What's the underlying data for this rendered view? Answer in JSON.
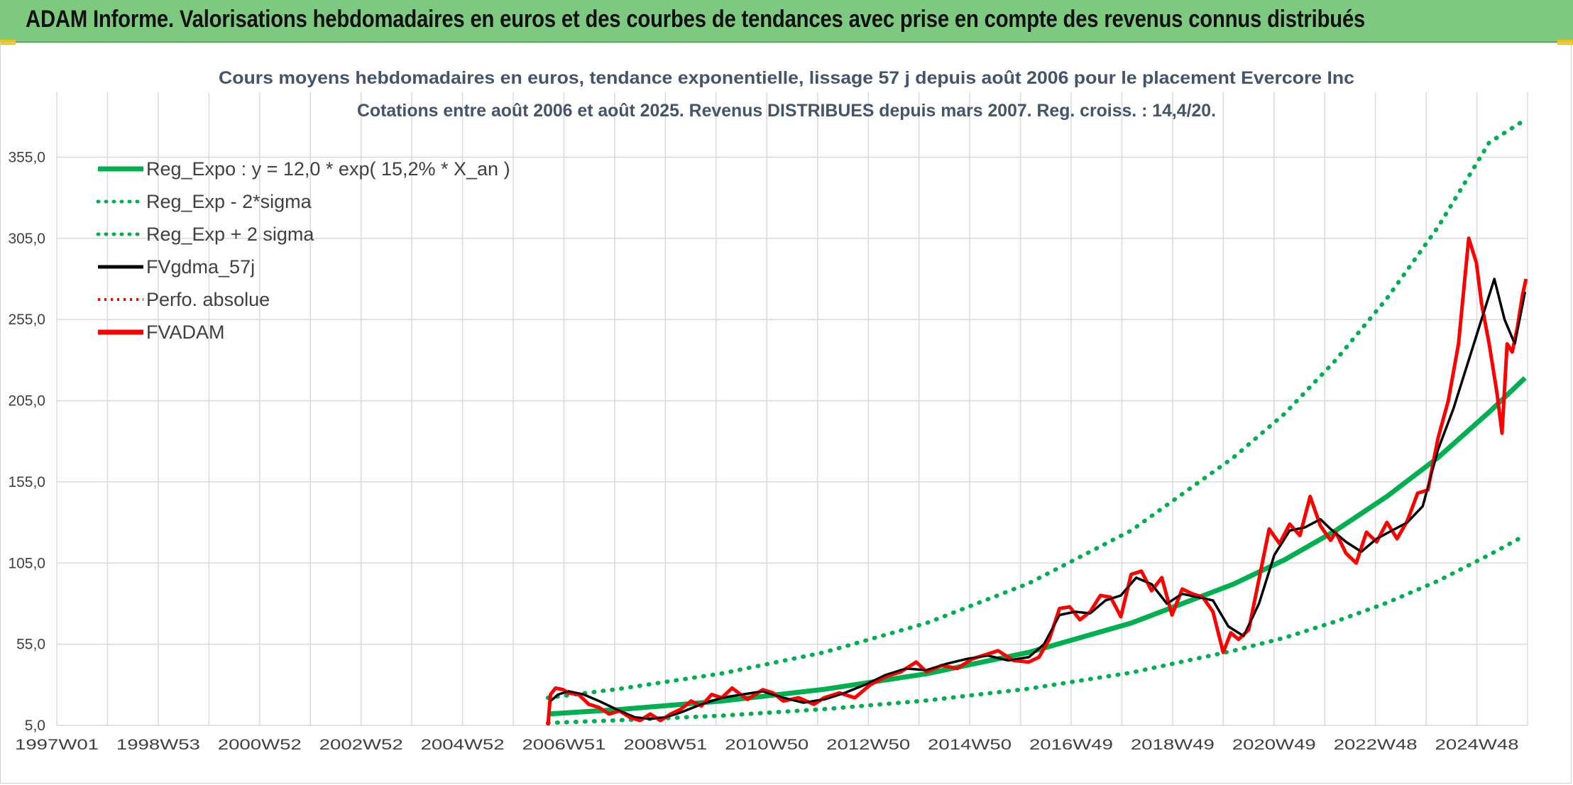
{
  "header": {
    "title": "ADAM Informe. Valorisations hebdomadaires en euros et des courbes de tendances avec prise en compte des revenus connus distribués"
  },
  "colors": {
    "banner": "#7dc97f",
    "regression": "#00b050",
    "smoothed": "#000000",
    "valuation": "#ff0000",
    "grid": "#d9d9d9"
  },
  "chart_data": {
    "type": "line",
    "title": "Cours moyens hebdomadaires en euros, tendance exponentielle, lissage 57 j depuis août 2006 pour le placement Evercore Inc",
    "subtitle": "Cotations entre août 2006 et août 2025. Revenus DISTRIBUES depuis mars 2007. Reg. croiss. : 14,4/20.",
    "xlabel": "",
    "ylabel": "",
    "x_tick_labels": [
      "1997W01",
      "1998W53",
      "2000W52",
      "2002W52",
      "2004W52",
      "2006W51",
      "2008W51",
      "2010W50",
      "2012W50",
      "2014W50",
      "2016W49",
      "2018W49",
      "2020W49",
      "2022W48",
      "2024W48"
    ],
    "y_tick_labels": [
      "5,0",
      "55,0",
      "105,0",
      "155,0",
      "205,0",
      "255,0",
      "305,0",
      "355,0"
    ],
    "ylim": [
      5,
      395
    ],
    "xlim": [
      1997.0,
      2025.75
    ],
    "grid": true,
    "legend_position": "top-left",
    "legend": [
      {
        "label": "Reg_Expo : y = 12,0 * exp( 15,2% *  X_an )",
        "color": "#00b050",
        "style": "solid"
      },
      {
        "label": "Reg_Exp - 2*sigma",
        "color": "#00b050",
        "style": "dotted"
      },
      {
        "label": "Reg_Exp + 2 sigma",
        "color": "#00b050",
        "style": "dotted"
      },
      {
        "label": "FVgdma_57j",
        "color": "#000000",
        "style": "solid"
      },
      {
        "label": "Perfo. absolue",
        "color": "#ff0000",
        "style": "dotted"
      },
      {
        "label": "FVADAM",
        "color": "#ff0000",
        "style": "solid"
      }
    ],
    "series": [
      {
        "name": "Reg_Expo : y = 12,0 * exp( 15,2% *  X_an )",
        "x": [
          2006.6,
          2008.0,
          2010.0,
          2012.0,
          2014.0,
          2016.0,
          2018.0,
          2020.0,
          2021.0,
          2022.0,
          2023.0,
          2024.0,
          2025.0,
          2025.7
        ],
        "values": [
          12.0,
          14.8,
          20.0,
          27.2,
          36.8,
          50.0,
          68.0,
          92.0,
          107.0,
          125.0,
          146.0,
          170.0,
          198.0,
          219.0
        ]
      },
      {
        "name": "Reg_Exp - 2*sigma",
        "x": [
          2006.6,
          2008.0,
          2010.0,
          2012.0,
          2014.0,
          2016.0,
          2018.0,
          2020.0,
          2021.0,
          2022.0,
          2023.0,
          2024.0,
          2025.0,
          2025.7
        ],
        "values": [
          6.5,
          8.2,
          11.0,
          15.0,
          20.3,
          27.6,
          37.5,
          51.0,
          59.0,
          69.0,
          80.5,
          94.0,
          110.0,
          122.0
        ]
      },
      {
        "name": "Reg_Exp + 2 sigma",
        "x": [
          2006.6,
          2008.0,
          2010.0,
          2012.0,
          2014.0,
          2016.0,
          2018.0,
          2020.0,
          2021.0,
          2022.0,
          2023.0,
          2024.0,
          2025.0,
          2025.7
        ],
        "values": [
          22.0,
          27.5,
          37.0,
          50.0,
          68.0,
          92.5,
          125.0,
          170.0,
          197.0,
          230.0,
          268.0,
          312.0,
          364.0,
          378.0
        ]
      },
      {
        "name": "FVgdma_57j",
        "x": [
          2006.65,
          2006.8,
          2007.0,
          2007.3,
          2007.6,
          2008.0,
          2008.3,
          2008.6,
          2008.9,
          2009.2,
          2009.6,
          2010.0,
          2010.4,
          2010.8,
          2011.2,
          2011.6,
          2012.0,
          2012.4,
          2012.8,
          2013.2,
          2013.6,
          2014.0,
          2014.4,
          2014.8,
          2015.2,
          2015.6,
          2016.0,
          2016.3,
          2016.6,
          2016.9,
          2017.2,
          2017.5,
          2017.8,
          2018.1,
          2018.4,
          2018.7,
          2019.0,
          2019.3,
          2019.6,
          2019.9,
          2020.2,
          2020.5,
          2020.8,
          2021.1,
          2021.4,
          2021.7,
          2021.9,
          2022.2,
          2022.5,
          2022.8,
          2023.1,
          2023.4,
          2023.7,
          2024.0,
          2024.3,
          2024.6,
          2024.9,
          2025.1,
          2025.3,
          2025.5,
          2025.7
        ],
        "values": [
          20.0,
          24.0,
          26.0,
          24.0,
          20.0,
          14.0,
          10.0,
          9.0,
          10.0,
          13.0,
          18.0,
          22.0,
          24.0,
          26.0,
          22.0,
          19.0,
          21.0,
          25.0,
          30.0,
          36.0,
          40.0,
          39.0,
          43.0,
          46.0,
          48.0,
          45.0,
          47.0,
          55.0,
          73.0,
          75.0,
          74.0,
          82.0,
          85.0,
          96.0,
          92.0,
          80.0,
          86.0,
          84.0,
          82.0,
          66.0,
          60.0,
          80.0,
          110.0,
          125.0,
          127.0,
          132.0,
          126.0,
          118.0,
          112.0,
          120.0,
          125.0,
          130.0,
          140.0,
          175.0,
          200.0,
          230.0,
          260.0,
          280.0,
          255.0,
          240.0,
          272.0
        ]
      },
      {
        "name": "FVADAM",
        "x": [
          2006.6,
          2006.65,
          2006.75,
          2006.9,
          2007.0,
          2007.2,
          2007.4,
          2007.6,
          2007.8,
          2008.0,
          2008.2,
          2008.4,
          2008.6,
          2008.8,
          2009.0,
          2009.2,
          2009.4,
          2009.6,
          2009.8,
          2010.0,
          2010.2,
          2010.5,
          2010.8,
          2011.0,
          2011.2,
          2011.5,
          2011.8,
          2012.0,
          2012.3,
          2012.6,
          2012.9,
          2013.2,
          2013.5,
          2013.8,
          2014.0,
          2014.3,
          2014.6,
          2014.9,
          2015.1,
          2015.4,
          2015.7,
          2016.0,
          2016.2,
          2016.4,
          2016.6,
          2016.8,
          2017.0,
          2017.2,
          2017.4,
          2017.6,
          2017.8,
          2018.0,
          2018.2,
          2018.4,
          2018.6,
          2018.8,
          2019.0,
          2019.2,
          2019.4,
          2019.6,
          2019.8,
          2019.95,
          2020.1,
          2020.3,
          2020.5,
          2020.7,
          2020.9,
          2021.1,
          2021.3,
          2021.5,
          2021.7,
          2021.9,
          2022.0,
          2022.2,
          2022.4,
          2022.6,
          2022.8,
          2023.0,
          2023.2,
          2023.4,
          2023.6,
          2023.8,
          2024.0,
          2024.2,
          2024.4,
          2024.6,
          2024.75,
          2024.85,
          2025.0,
          2025.15,
          2025.25,
          2025.35,
          2025.45,
          2025.55,
          2025.65,
          2025.72
        ],
        "values": [
          5.0,
          24.0,
          28.0,
          27.0,
          25.0,
          24.0,
          18.0,
          16.0,
          12.0,
          14.0,
          10.0,
          8.0,
          12.0,
          8.0,
          12.0,
          15.0,
          20.0,
          17.0,
          24.0,
          22.0,
          28.0,
          21.0,
          27.0,
          25.0,
          20.0,
          22.0,
          18.0,
          22.0,
          25.0,
          22.0,
          30.0,
          35.0,
          38.0,
          44.0,
          38.0,
          42.0,
          40.0,
          46.0,
          48.0,
          51.0,
          45.0,
          44.0,
          47.0,
          58.0,
          77.0,
          78.0,
          70.0,
          75.0,
          85.0,
          84.0,
          72.0,
          98.0,
          100.0,
          88.0,
          96.0,
          73.0,
          89.0,
          86.0,
          84.0,
          75.0,
          50.0,
          62.0,
          58.0,
          64.0,
          95.0,
          126.0,
          117.0,
          129.0,
          122.0,
          146.0,
          128.0,
          119.0,
          124.0,
          111.0,
          105.0,
          124.0,
          118.0,
          130.0,
          120.0,
          131.0,
          148.0,
          150.0,
          182.0,
          205.0,
          240.0,
          305.0,
          290.0,
          265.0,
          240.0,
          210.0,
          185.0,
          240.0,
          235.0,
          250.0,
          270.0,
          280.0
        ]
      }
    ]
  }
}
